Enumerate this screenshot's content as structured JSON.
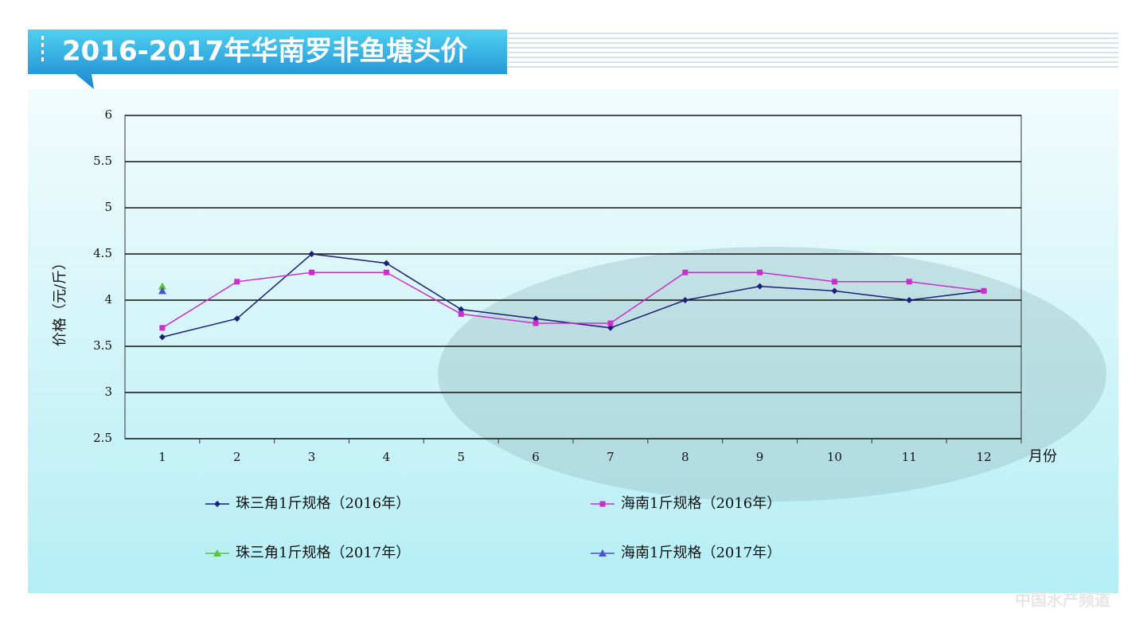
{
  "chart_data": {
    "type": "line",
    "title": "2016-2017年华南罗非鱼塘头价",
    "y_label": "价格（元/斤）",
    "x_label": "月份",
    "watermark": "中国水产频道",
    "categories": [
      "1",
      "2",
      "3",
      "4",
      "5",
      "6",
      "7",
      "8",
      "9",
      "10",
      "11",
      "12"
    ],
    "ylim": [
      2.5,
      6
    ],
    "yticks": [
      2.5,
      3,
      3.5,
      4,
      4.5,
      5,
      5.5,
      6
    ],
    "grid": true,
    "series": [
      {
        "name": "珠三角1斤规格（2016年）",
        "color": "#1c1f78",
        "marker": "diamond",
        "values": [
          3.6,
          3.8,
          4.5,
          4.4,
          3.9,
          3.8,
          3.7,
          4.0,
          4.15,
          4.1,
          4.0,
          4.1
        ]
      },
      {
        "name": "海南1斤规格（2016年）",
        "color": "#cc2ecc",
        "marker": "square",
        "values": [
          3.7,
          4.2,
          4.3,
          4.3,
          3.85,
          3.75,
          3.75,
          4.3,
          4.3,
          4.2,
          4.2,
          4.1
        ]
      },
      {
        "name": "珠三角1斤规格（2017年）",
        "color": "#5cc23a",
        "marker": "triangle",
        "values": [
          4.15,
          null,
          null,
          null,
          null,
          null,
          null,
          null,
          null,
          null,
          null,
          null
        ]
      },
      {
        "name": "海南1斤规格（2017年）",
        "color": "#4a55c8",
        "marker": "triangle",
        "values": [
          4.1,
          null,
          null,
          null,
          null,
          null,
          null,
          null,
          null,
          null,
          null,
          null
        ]
      }
    ]
  }
}
